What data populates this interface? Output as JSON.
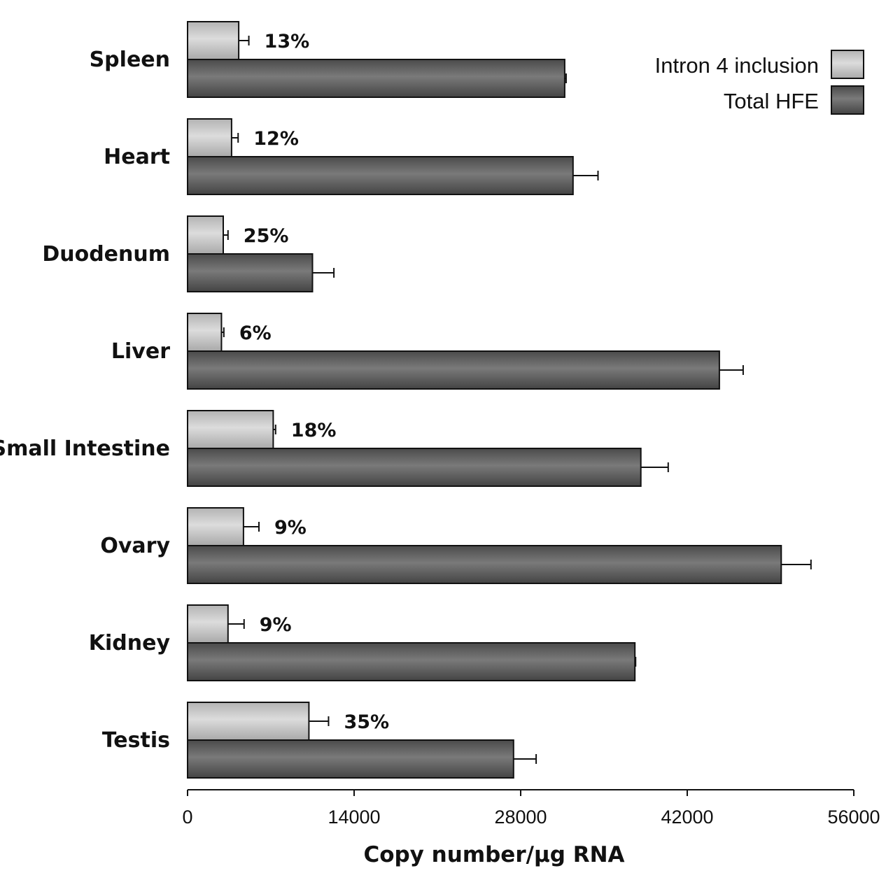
{
  "chart_data": {
    "type": "bar",
    "orientation": "horizontal",
    "categories": [
      "Spleen",
      "Heart",
      "Duodenum",
      "Liver",
      "Small Intestine",
      "Ovary",
      "Kidney",
      "Testis"
    ],
    "series": [
      {
        "name": "Intron 4 inclusion",
        "values": [
          4300,
          3700,
          3000,
          2850,
          7200,
          4700,
          3400,
          10200
        ],
        "errors": [
          850,
          550,
          400,
          200,
          200,
          1300,
          1350,
          1650
        ],
        "color": "#c4c4c4"
      },
      {
        "name": "Total HFE",
        "values": [
          31700,
          32400,
          10500,
          44700,
          38100,
          49900,
          37600,
          27400
        ],
        "errors": [
          120,
          2100,
          1800,
          2000,
          2300,
          2500,
          60,
          1900
        ],
        "color": "#5c5c5c"
      }
    ],
    "annotations": [
      "13%",
      "12%",
      "25%",
      "6%",
      "18%",
      "9%",
      "9%",
      "35%"
    ],
    "xlabel": "Copy number/µg RNA",
    "xlim": [
      0,
      56000
    ],
    "xticks": [
      0,
      14000,
      28000,
      42000,
      56000
    ],
    "xtick_labels": [
      "0",
      "14000",
      "28000",
      "42000",
      "56000"
    ],
    "grid": false,
    "legend_position": "top-right"
  }
}
